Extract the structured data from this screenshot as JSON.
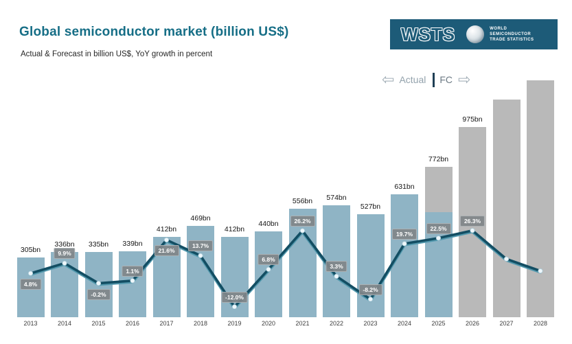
{
  "header": {
    "title": "Global semiconductor market (billion US$)",
    "subtitle": "Actual & Forecast in billion US$, YoY growth in percent"
  },
  "logo": {
    "acronym": "WSTS",
    "org_lines": [
      "WORLD",
      "SEMICONDUCTOR",
      "TRADE STATISTICS"
    ],
    "bg_color": "#1d5b78"
  },
  "legend": {
    "left_arrow": "⇦",
    "actual_label": "Actual",
    "fc_label": "FC",
    "right_arrow": "⇨"
  },
  "chart_data": {
    "type": "bar+line",
    "title": "Global semiconductor market (billion US$)",
    "categories": [
      "2013",
      "2014",
      "2015",
      "2016",
      "2017",
      "2018",
      "2019",
      "2020",
      "2021",
      "2022",
      "2023",
      "2024",
      "2025",
      "2026",
      "2027",
      "2028"
    ],
    "series": [
      {
        "name": "Market size (billion US$)",
        "type": "bar",
        "values_bn": [
          305,
          336,
          335,
          339,
          412,
          469,
          412,
          440,
          556,
          574,
          527,
          631,
          772,
          975,
          1115,
          1215
        ],
        "labels": [
          "305bn",
          "336bn",
          "335bn",
          "339bn",
          "412bn",
          "469bn",
          "412bn",
          "440bn",
          "556bn",
          "574bn",
          "527bn",
          "631bn",
          "772bn",
          "975bn",
          "",
          ""
        ],
        "bar_kind": [
          "actual",
          "actual",
          "actual",
          "actual",
          "actual",
          "actual",
          "actual",
          "actual",
          "actual",
          "actual",
          "actual",
          "actual",
          "split",
          "forecast",
          "forecast",
          "forecast"
        ],
        "split_blue_fraction": 0.7
      },
      {
        "name": "YoY growth (%)",
        "type": "line",
        "values_pct": [
          4.8,
          9.9,
          -0.2,
          1.1,
          21.6,
          13.7,
          -12.0,
          6.8,
          26.2,
          3.3,
          -8.2,
          19.7,
          22.5,
          26.3,
          12,
          6
        ],
        "labels": [
          "4.8%",
          "9.9%",
          "-0.2%",
          "1.1%",
          "21.6%",
          "13.7%",
          "-12.0%",
          "6.8%",
          "26.2%",
          "3.3%",
          "-8.2%",
          "19.7%",
          "22.5%",
          "26.3%",
          "",
          ""
        ]
      }
    ],
    "estimated_indices_note": "2027 and 2028 bars and line points are shown unlabeled in the chart; their numeric values are estimates read from bar heights / line position",
    "estimated_indices": [
      14,
      15
    ],
    "legend_position": "top-right",
    "grid": false,
    "y_axis": "none (values printed above bars)",
    "colors": {
      "actual_bar": "#8fb4c5",
      "forecast_bar": "#b9b9b9",
      "growth_line": "#134e63",
      "growth_line_highlight": "#5298ad",
      "point_fill": "#eef7fb",
      "badge_bg": "#808589",
      "title": "#166e86",
      "logo_bg": "#1d5b78"
    }
  }
}
